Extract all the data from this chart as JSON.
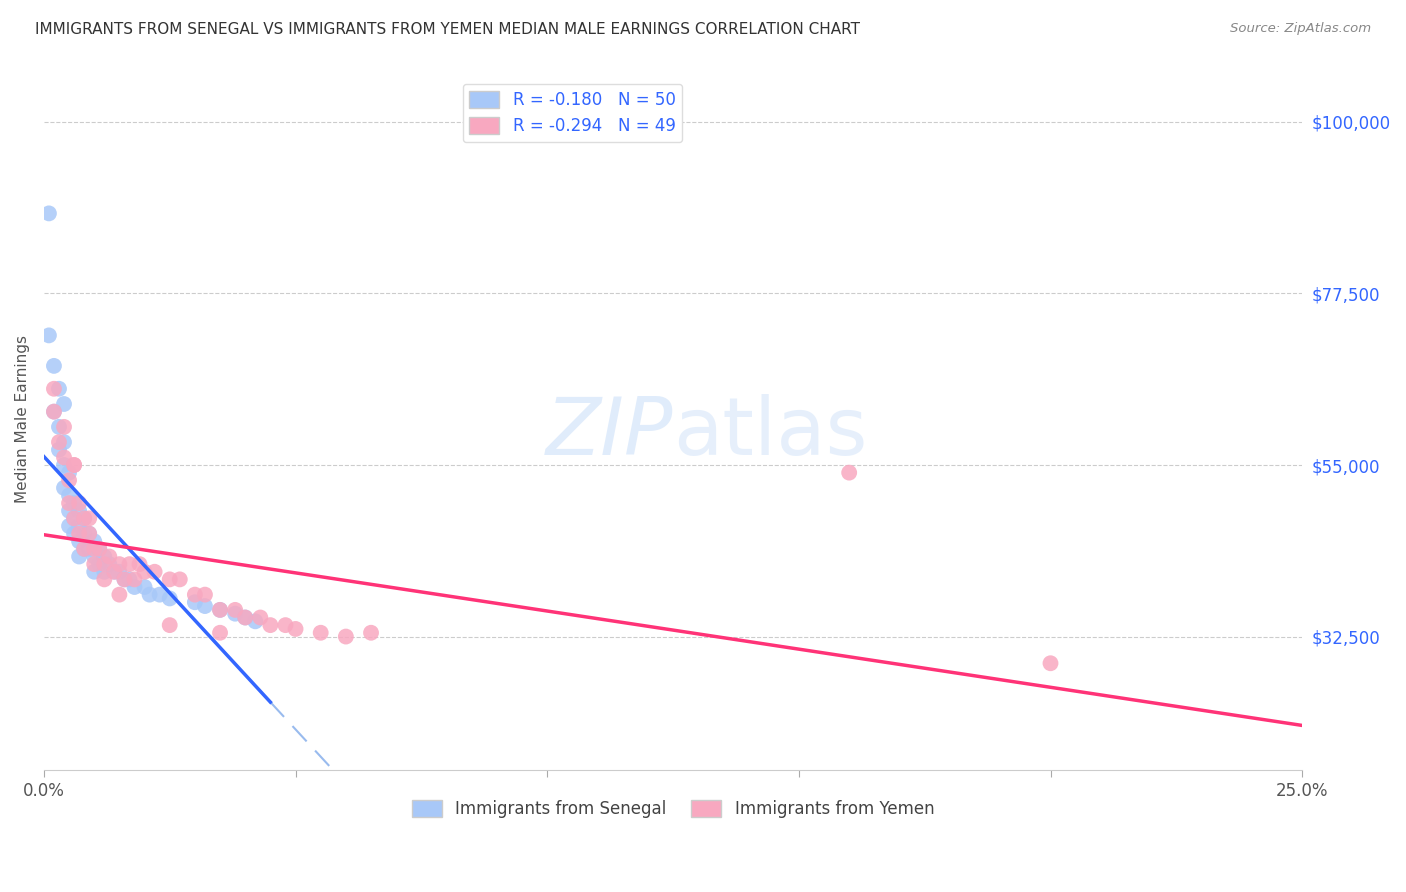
{
  "title": "IMMIGRANTS FROM SENEGAL VS IMMIGRANTS FROM YEMEN MEDIAN MALE EARNINGS CORRELATION CHART",
  "source": "Source: ZipAtlas.com",
  "ylabel": "Median Male Earnings",
  "y_ticks": [
    32500,
    55000,
    77500,
    100000
  ],
  "y_tick_labels": [
    "$32,500",
    "$55,000",
    "$77,500",
    "$100,000"
  ],
  "x_min": 0.0,
  "x_max": 0.25,
  "y_min": 15000,
  "y_max": 107000,
  "legend_senegal": "R = -0.180   N = 50",
  "legend_yemen": "R = -0.294   N = 49",
  "legend_bottom_senegal": "Immigrants from Senegal",
  "legend_bottom_yemen": "Immigrants from Yemen",
  "color_senegal": "#a8c8f8",
  "color_yemen": "#f8a8c0",
  "line_color_senegal": "#3366ff",
  "line_color_yemen": "#ff3377",
  "line_color_dashed": "#99bbee",
  "background_color": "#ffffff",
  "senegal_x": [
    0.001,
    0.001,
    0.002,
    0.002,
    0.003,
    0.003,
    0.003,
    0.004,
    0.004,
    0.004,
    0.004,
    0.005,
    0.005,
    0.005,
    0.005,
    0.006,
    0.006,
    0.006,
    0.007,
    0.007,
    0.007,
    0.007,
    0.008,
    0.008,
    0.008,
    0.009,
    0.009,
    0.01,
    0.01,
    0.01,
    0.011,
    0.011,
    0.012,
    0.012,
    0.013,
    0.014,
    0.015,
    0.016,
    0.017,
    0.018,
    0.02,
    0.021,
    0.023,
    0.025,
    0.03,
    0.032,
    0.035,
    0.038,
    0.04,
    0.042
  ],
  "senegal_y": [
    88000,
    72000,
    68000,
    62000,
    65000,
    60000,
    57000,
    63000,
    58000,
    55000,
    52000,
    54000,
    51000,
    49000,
    47000,
    50000,
    48000,
    46000,
    49000,
    47000,
    45000,
    43000,
    48000,
    46000,
    44000,
    46000,
    44000,
    45000,
    43000,
    41000,
    44000,
    42000,
    43000,
    41000,
    42000,
    41000,
    41000,
    40000,
    40000,
    39000,
    39000,
    38000,
    38000,
    37500,
    37000,
    36500,
    36000,
    35500,
    35000,
    34500
  ],
  "yemen_x": [
    0.002,
    0.003,
    0.004,
    0.005,
    0.005,
    0.006,
    0.006,
    0.007,
    0.007,
    0.008,
    0.008,
    0.009,
    0.01,
    0.01,
    0.011,
    0.012,
    0.012,
    0.013,
    0.014,
    0.015,
    0.016,
    0.017,
    0.018,
    0.019,
    0.02,
    0.022,
    0.025,
    0.027,
    0.03,
    0.032,
    0.035,
    0.038,
    0.04,
    0.043,
    0.045,
    0.048,
    0.05,
    0.055,
    0.06,
    0.065,
    0.002,
    0.004,
    0.006,
    0.009,
    0.015,
    0.025,
    0.035,
    0.16,
    0.2
  ],
  "yemen_y": [
    62000,
    58000,
    56000,
    53000,
    50000,
    55000,
    48000,
    50000,
    46000,
    48000,
    44000,
    46000,
    44000,
    42000,
    44000,
    42000,
    40000,
    43000,
    41000,
    42000,
    40000,
    42000,
    40000,
    42000,
    41000,
    41000,
    40000,
    40000,
    38000,
    38000,
    36000,
    36000,
    35000,
    35000,
    34000,
    34000,
    33500,
    33000,
    32500,
    33000,
    65000,
    60000,
    55000,
    48000,
    38000,
    34000,
    33000,
    54000,
    29000
  ]
}
